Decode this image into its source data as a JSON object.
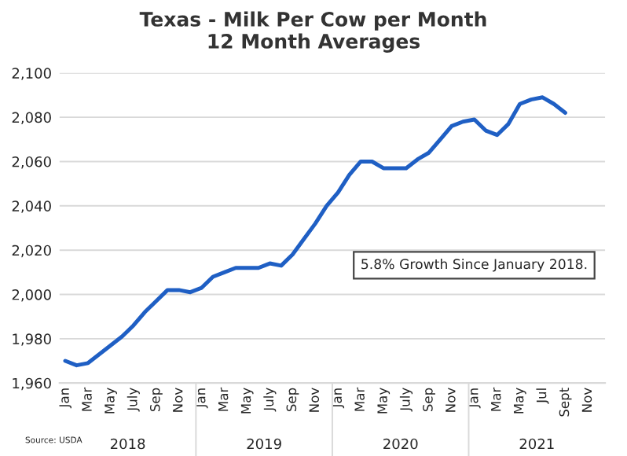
{
  "chart_data": {
    "type": "line",
    "title": "Texas - Milk Per Cow per Month\n12 Month Averages",
    "categories": [
      "Jan",
      null,
      "Mar",
      null,
      "May",
      null,
      "July",
      null,
      "Sep",
      null,
      "Nov",
      null,
      "Jan",
      null,
      "Mar",
      null,
      "May",
      null,
      "July",
      null,
      "Sep",
      null,
      "Nov",
      null,
      "Jan",
      null,
      "Mar",
      null,
      "May",
      null,
      "July",
      null,
      "Sep",
      null,
      "Nov",
      null,
      "Jan",
      null,
      "Mar",
      null,
      "May",
      null,
      "Jul",
      null,
      "Sept",
      null,
      "Nov",
      null
    ],
    "series": [
      {
        "color": "#1f5fc4",
        "values": [
          1970,
          1968,
          1969,
          1973,
          1977,
          1981,
          1986,
          1992,
          1997,
          2002,
          2002,
          2001,
          2003,
          2008,
          2010,
          2012,
          2012,
          2012,
          2014,
          2013,
          2018,
          2025,
          2032,
          2040,
          2046,
          2054,
          2060,
          2060,
          2057,
          2057,
          2057,
          2061,
          2064,
          2070,
          2076,
          2078,
          2079,
          2074,
          2072,
          2077,
          2086,
          2088,
          2089,
          2086,
          2082,
          null,
          null,
          null
        ]
      }
    ],
    "ylim": [
      1960,
      2100
    ],
    "yticks": [
      {
        "value": 1960,
        "label": "1,960"
      },
      {
        "value": 1980,
        "label": "1,980"
      },
      {
        "value": 2000,
        "label": "2,000"
      },
      {
        "value": 2020,
        "label": "2,020"
      },
      {
        "value": 2040,
        "label": "2,040"
      },
      {
        "value": 2060,
        "label": "2,060"
      },
      {
        "value": 2080,
        "label": "2,080"
      },
      {
        "value": 2100,
        "label": "2,100"
      }
    ],
    "grid": "y",
    "legend": false,
    "marker": "none",
    "line_style": "solid",
    "annotations": [
      "5.8% Growth Since January 2018.",
      "Source: USDA",
      "2018",
      "2019",
      "2020",
      "2021"
    ]
  }
}
